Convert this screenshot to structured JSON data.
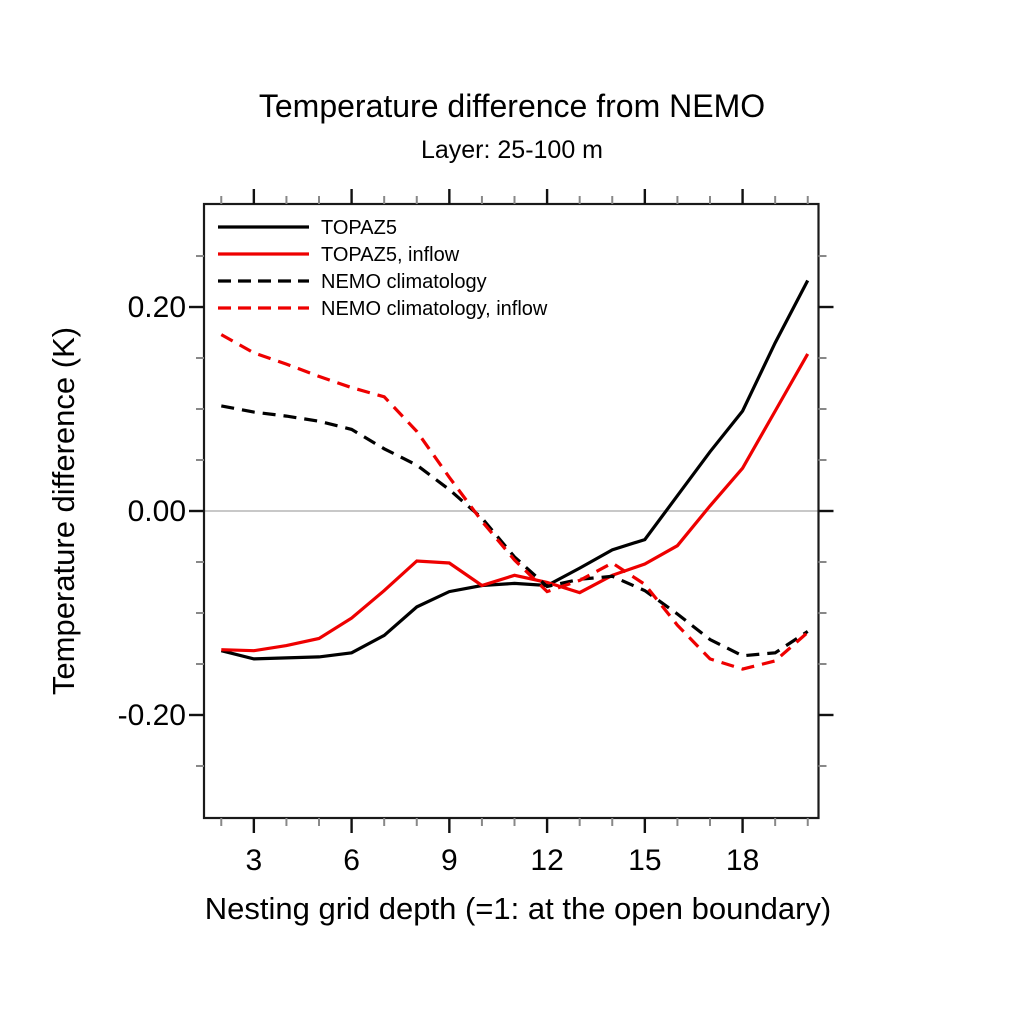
{
  "chart_data": {
    "type": "line",
    "title": "Temperature difference from NEMO",
    "subtitle": "Layer: 25-100 m",
    "xlabel": "Nesting grid depth (=1: at the open boundary)",
    "ylabel": "Temperature difference (K)",
    "x": [
      2,
      3,
      4,
      5,
      6,
      7,
      8,
      9,
      10,
      11,
      12,
      13,
      14,
      15,
      16,
      17,
      18,
      19,
      20
    ],
    "series": [
      {
        "name": "TOPAZ5",
        "color": "#000000",
        "style": "solid",
        "values": [
          -0.137,
          -0.145,
          -0.144,
          -0.143,
          -0.139,
          -0.122,
          -0.094,
          -0.079,
          -0.073,
          -0.071,
          -0.073,
          -0.056,
          -0.038,
          -0.028,
          0.015,
          0.058,
          0.098,
          0.165,
          0.226
        ]
      },
      {
        "name": "TOPAZ5, inflow",
        "color": "#ee0000",
        "style": "solid",
        "values": [
          -0.136,
          -0.137,
          -0.132,
          -0.125,
          -0.105,
          -0.078,
          -0.049,
          -0.051,
          -0.073,
          -0.063,
          -0.07,
          -0.08,
          -0.063,
          -0.052,
          -0.034,
          0.005,
          0.042,
          0.098,
          0.154
        ]
      },
      {
        "name": "NEMO climatology",
        "color": "#000000",
        "style": "dashed",
        "values": [
          0.103,
          0.097,
          0.093,
          0.088,
          0.08,
          0.061,
          0.045,
          0.021,
          -0.007,
          -0.045,
          -0.074,
          -0.067,
          -0.064,
          -0.078,
          -0.101,
          -0.126,
          -0.142,
          -0.139,
          -0.118
        ]
      },
      {
        "name": "NEMO climatology, inflow",
        "color": "#ee0000",
        "style": "dashed",
        "values": [
          0.173,
          0.155,
          0.144,
          0.132,
          0.121,
          0.112,
          0.078,
          0.033,
          -0.01,
          -0.048,
          -0.079,
          -0.068,
          -0.051,
          -0.072,
          -0.112,
          -0.145,
          -0.155,
          -0.147,
          -0.119
        ]
      }
    ],
    "xlim": [
      1.47,
      20.33
    ],
    "ylim": [
      -0.301,
      0.301
    ],
    "x_ticks_major": [
      3,
      6,
      9,
      12,
      15,
      18
    ],
    "x_tick_labels": [
      "3",
      "6",
      "9",
      "12",
      "15",
      "18"
    ],
    "x_tick_minor_step": 1,
    "y_ticks_major": [
      {
        "value": -0.2,
        "label": "-0.20"
      },
      {
        "value": 0.0,
        "label": "0.00"
      },
      {
        "value": 0.2,
        "label": "0.20"
      }
    ],
    "y_tick_minor_step": 0.05,
    "zero_line": true,
    "zero_line_color": "#c8c8c8",
    "grid": false,
    "legend_position": "top-left-inside",
    "colors": {
      "black_series": "#000000",
      "red_series": "#ee0000",
      "frame": "#1a1a1a",
      "minor_tick": "#888888"
    }
  }
}
